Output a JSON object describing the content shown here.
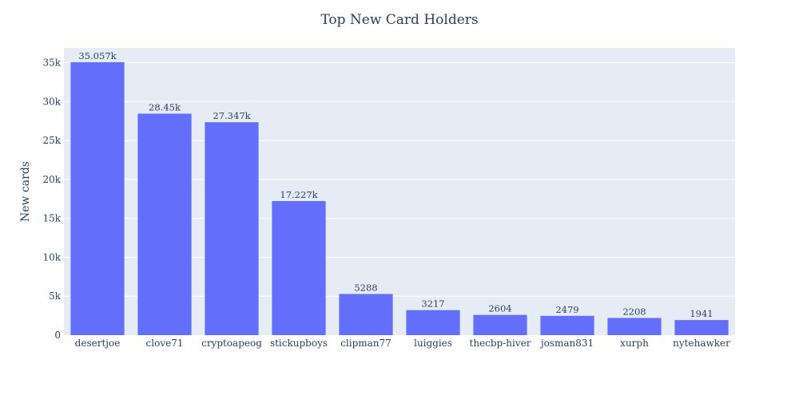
{
  "chart_data": {
    "type": "bar",
    "title": "Top New Card Holders",
    "xlabel": "",
    "ylabel": "New cards",
    "ylim": [
      0,
      36900
    ],
    "grid": true,
    "colors": {
      "bar": "#636efa",
      "plot_bg": "#e5ecf6",
      "grid": "#ffffff",
      "text": "#2a3f5f"
    },
    "categories": [
      "desertjoe",
      "clove71",
      "cryptoapeog",
      "stickupboys",
      "clipman77",
      "luiggies",
      "thecbp-hiver",
      "josman831",
      "xurph",
      "nytehawker"
    ],
    "values": [
      35057,
      28450,
      27347,
      17227,
      5288,
      3217,
      2604,
      2479,
      2208,
      1941
    ],
    "data_labels": [
      "35.057k",
      "28.45k",
      "27.347k",
      "17.227k",
      "5288",
      "3217",
      "2604",
      "2479",
      "2208",
      "1941"
    ],
    "y_ticks": [
      0,
      5000,
      10000,
      15000,
      20000,
      25000,
      30000,
      35000
    ],
    "y_tick_labels": [
      "0",
      "5k",
      "10k",
      "15k",
      "20k",
      "25k",
      "30k",
      "35k"
    ]
  }
}
